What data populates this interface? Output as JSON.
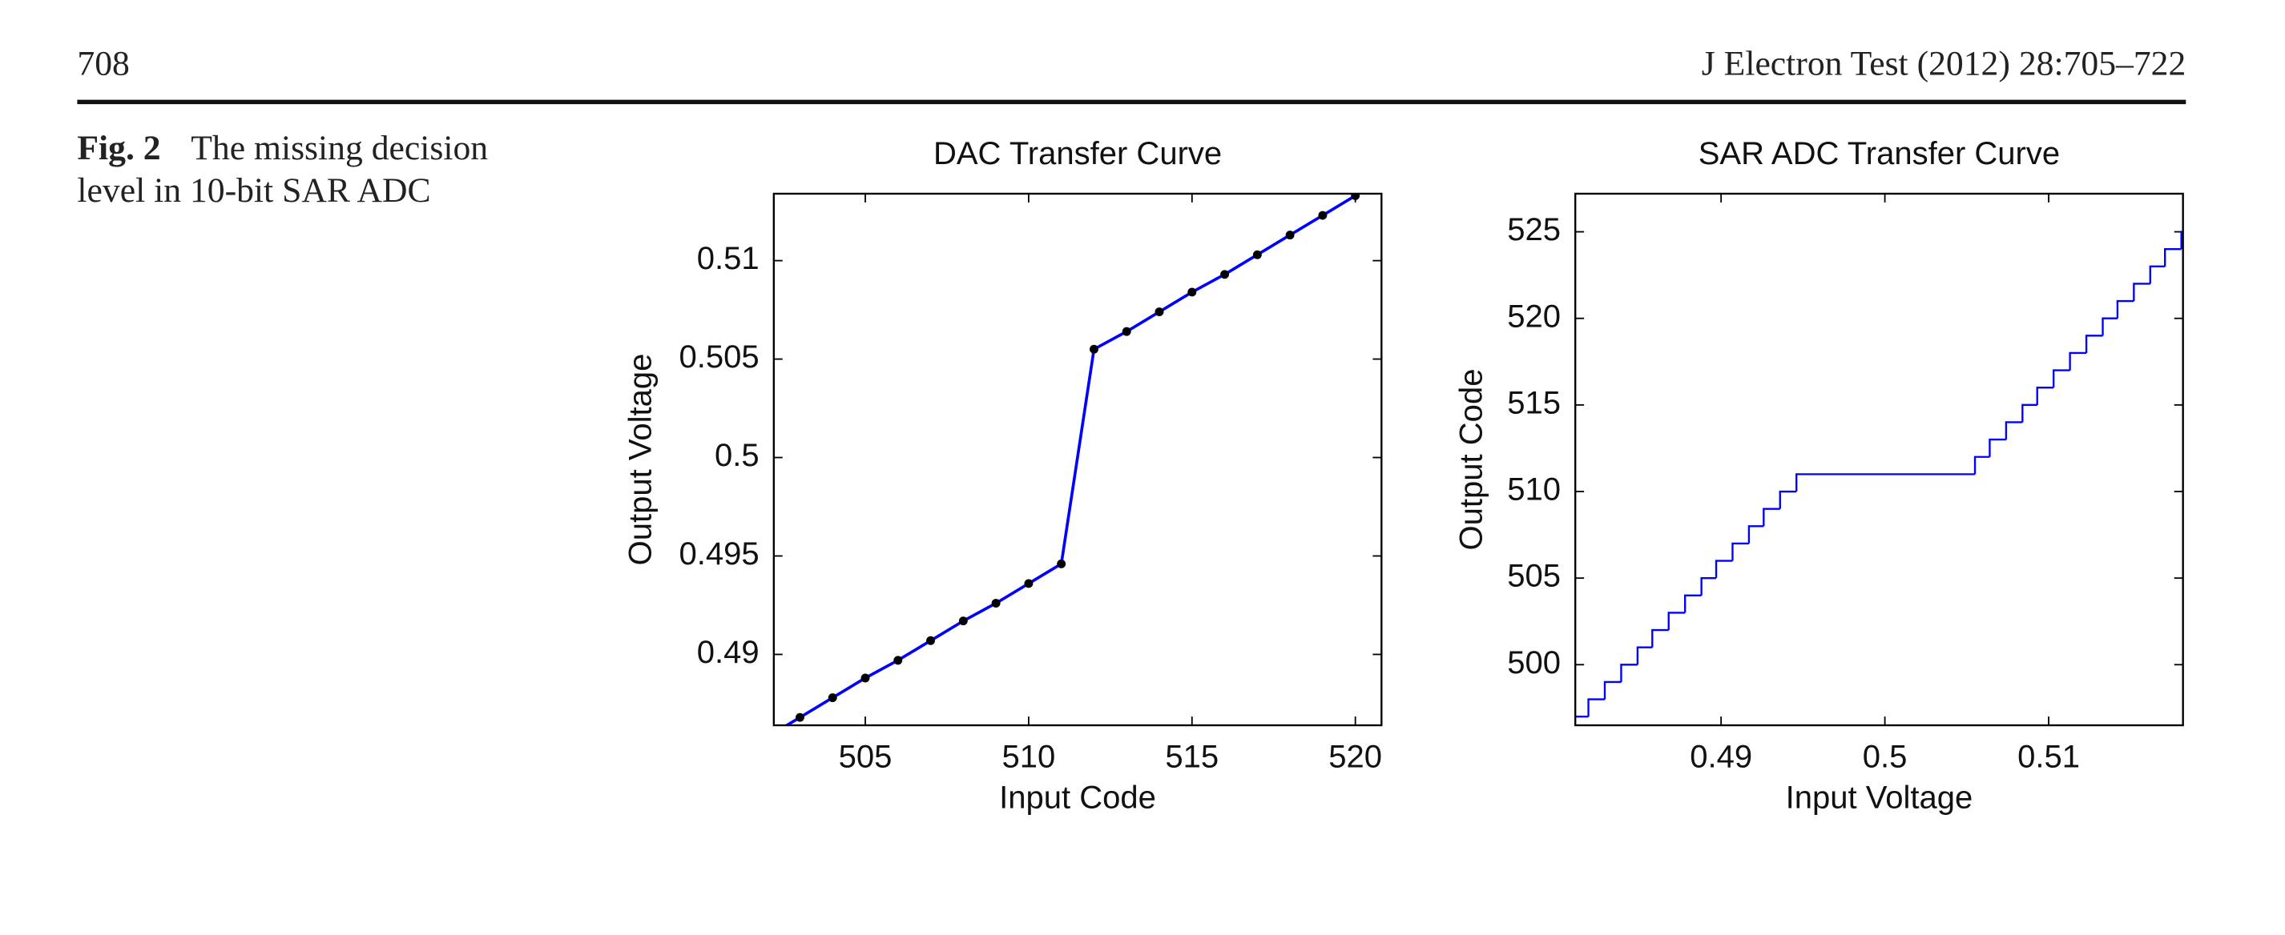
{
  "header": {
    "page_number": "708",
    "journal": "J Electron Test (2012) 28:705–722"
  },
  "caption": {
    "label": "Fig. 2",
    "lines": [
      "The missing decision",
      "level in 10-bit SAR ADC"
    ]
  },
  "chart_data": [
    {
      "type": "line",
      "title": "DAC Transfer Curve",
      "x_label": "Input Code",
      "y_label": "Output Voltage",
      "x": [
        502,
        503,
        504,
        505,
        506,
        507,
        508,
        509,
        510,
        511,
        512,
        513,
        514,
        515,
        516,
        517,
        518,
        519,
        520
      ],
      "series": [
        {
          "color": "#0000ff",
          "marker_color": "#000000",
          "values": [
            0.4858,
            0.4868,
            0.4878,
            0.4888,
            0.4897,
            0.4907,
            0.4917,
            0.4926,
            0.4936,
            0.4946,
            0.5055,
            0.5064,
            0.5074,
            0.5084,
            0.5093,
            0.5103,
            0.5113,
            0.5123,
            0.5133
          ]
        }
      ],
      "xlim": [
        502.2,
        520.8
      ],
      "ylim": [
        0.4864,
        0.5134
      ],
      "xticks": [
        505,
        510,
        515,
        520
      ],
      "yticks": [
        0.49,
        0.495,
        0.5,
        0.505,
        0.51
      ],
      "grid": false
    },
    {
      "type": "step",
      "title": "SAR ADC Transfer Curve",
      "x_label": "Input Voltage",
      "y_label": "Output Code",
      "x": [
        0.4811,
        0.4819,
        0.4829,
        0.4839,
        0.4849,
        0.4858,
        0.4868,
        0.4878,
        0.4888,
        0.4897,
        0.4907,
        0.4917,
        0.4926,
        0.4936,
        0.4946,
        0.5055,
        0.5064,
        0.5074,
        0.5084,
        0.5093,
        0.5103,
        0.5113,
        0.5123,
        0.5133,
        0.5142,
        0.5152,
        0.5162,
        0.5171,
        0.5181
      ],
      "series": [
        {
          "color": "#0000ff",
          "values": [
            497,
            498,
            499,
            500,
            501,
            502,
            503,
            504,
            505,
            506,
            507,
            508,
            509,
            510,
            511,
            512,
            513,
            514,
            515,
            516,
            517,
            518,
            519,
            520,
            521,
            522,
            523,
            524,
            525
          ]
        }
      ],
      "xlim": [
        0.4811,
        0.5182
      ],
      "ylim": [
        496.5,
        527.2
      ],
      "xticks": [
        0.49,
        0.5,
        0.51
      ],
      "yticks": [
        500,
        505,
        510,
        515,
        520,
        525
      ],
      "grid": false
    }
  ]
}
